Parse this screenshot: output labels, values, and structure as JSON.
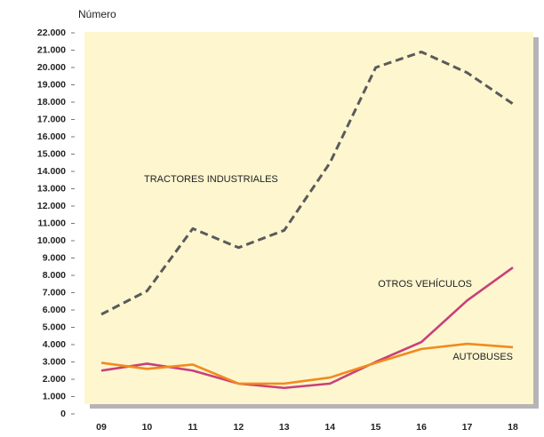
{
  "chart_data": {
    "type": "line",
    "y_label": "Número",
    "categories": [
      "09",
      "10",
      "11",
      "12",
      "13",
      "14",
      "15",
      "16",
      "17",
      "18"
    ],
    "series": [
      {
        "name": "TRACTORES INDUSTRIALES",
        "color": "#5a5a5a",
        "dashed": true,
        "values": [
          5750,
          7100,
          10700,
          9600,
          10600,
          14500,
          20000,
          20900,
          19700,
          17900
        ]
      },
      {
        "name": "OTROS VEHÍCULOS",
        "color": "#c8407a",
        "dashed": false,
        "values": [
          2500,
          2900,
          2500,
          1750,
          1500,
          1750,
          3000,
          4150,
          6550,
          8450
        ]
      },
      {
        "name": "AUTOBUSES",
        "color": "#f28a1e",
        "dashed": false,
        "values": [
          2950,
          2600,
          2850,
          1750,
          1750,
          2100,
          2950,
          3750,
          4050,
          3850
        ]
      }
    ],
    "ylim": [
      0,
      22000
    ],
    "yticks": [
      0,
      {
        "value": 1000,
        "label": "1.000"
      },
      {
        "value": 2000,
        "label": "2.000"
      },
      {
        "value": 3000,
        "label": "3.000"
      },
      {
        "value": 4000,
        "label": "4.000"
      },
      {
        "value": 5000,
        "label": "5.000"
      },
      {
        "value": 6000,
        "label": "6.000"
      },
      {
        "value": 7000,
        "label": "7.000"
      },
      {
        "value": 8000,
        "label": "8.000"
      },
      {
        "value": 9000,
        "label": "9.000"
      },
      {
        "value": 10000,
        "label": "10.000"
      },
      {
        "value": 11000,
        "label": "11.000"
      },
      {
        "value": 12000,
        "label": "12.000"
      },
      {
        "value": 13000,
        "label": "13.000"
      },
      {
        "value": 14000,
        "label": "14.000"
      },
      {
        "value": 15000,
        "label": "15.000"
      },
      {
        "value": 16000,
        "label": "16.000"
      },
      {
        "value": 17000,
        "label": "17.000"
      },
      {
        "value": 18000,
        "label": "18.000"
      },
      {
        "value": 19000,
        "label": "19.000"
      },
      {
        "value": 20000,
        "label": "20.000"
      },
      {
        "value": 21000,
        "label": "21.000"
      },
      {
        "value": 22000,
        "label": "22.000"
      }
    ],
    "grid": false
  }
}
